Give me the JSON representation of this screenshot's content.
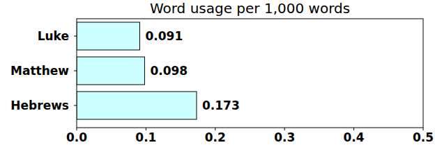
{
  "chart_data": {
    "type": "bar",
    "title": "Word usage per 1,000 words",
    "orientation": "horizontal",
    "categories": [
      "Luke",
      "Matthew",
      "Hebrews"
    ],
    "values": [
      0.091,
      0.098,
      0.173
    ],
    "color": "#ccffff",
    "xlim": [
      0,
      0.5
    ],
    "xticks": [
      {
        "value": 0,
        "label": "0.0"
      },
      0.1,
      0.2,
      0.3,
      0.4,
      0.5
    ],
    "data_labels": true,
    "grid": false
  }
}
